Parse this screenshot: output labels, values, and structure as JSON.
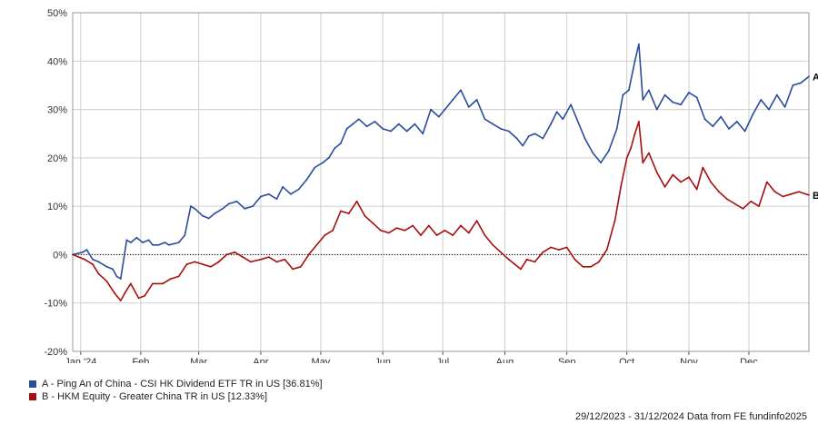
{
  "chart_data": {
    "type": "line",
    "xlabel": "",
    "ylabel": "",
    "ylim": [
      -20,
      50
    ],
    "yticks": [
      -20,
      -10,
      0,
      10,
      20,
      30,
      40,
      50
    ],
    "ytick_labels": [
      "-20%",
      "-10%",
      "0%",
      "10%",
      "20%",
      "30%",
      "40%",
      "50%"
    ],
    "x_start": "2023-12-29",
    "x_end": "2024-12-31",
    "xticks": [
      {
        "date": "2024-01-02",
        "label": "Jan '24"
      },
      {
        "date": "2024-02-01",
        "label": "Feb"
      },
      {
        "date": "2024-03-01",
        "label": "Mar"
      },
      {
        "date": "2024-04-01",
        "label": "Apr"
      },
      {
        "date": "2024-05-01",
        "label": "May"
      },
      {
        "date": "2024-06-01",
        "label": "Jun"
      },
      {
        "date": "2024-07-01",
        "label": "Jul"
      },
      {
        "date": "2024-08-01",
        "label": "Aug"
      },
      {
        "date": "2024-09-01",
        "label": "Sep"
      },
      {
        "date": "2024-10-01",
        "label": "Oct"
      },
      {
        "date": "2024-11-01",
        "label": "Nov"
      },
      {
        "date": "2024-12-01",
        "label": "Dec"
      }
    ],
    "grid": true,
    "zero_line": true,
    "series": [
      {
        "name": "A - Ping An of China - CSI HK Dividend ETF TR in US [36.81%]",
        "end_label": "A",
        "color": "#2a4d9b",
        "points": [
          [
            "2023-12-29",
            0.0
          ],
          [
            "2024-01-03",
            0.5
          ],
          [
            "2024-01-05",
            1.0
          ],
          [
            "2024-01-08",
            -1.0
          ],
          [
            "2024-01-11",
            -1.5
          ],
          [
            "2024-01-15",
            -2.5
          ],
          [
            "2024-01-18",
            -3.0
          ],
          [
            "2024-01-20",
            -4.5
          ],
          [
            "2024-01-22",
            -5.0
          ],
          [
            "2024-01-25",
            3.0
          ],
          [
            "2024-01-27",
            2.5
          ],
          [
            "2024-01-30",
            3.5
          ],
          [
            "2024-02-02",
            2.5
          ],
          [
            "2024-02-05",
            3.0
          ],
          [
            "2024-02-07",
            2.0
          ],
          [
            "2024-02-10",
            2.0
          ],
          [
            "2024-02-13",
            2.5
          ],
          [
            "2024-02-15",
            2.0
          ],
          [
            "2024-02-20",
            2.5
          ],
          [
            "2024-02-23",
            4.0
          ],
          [
            "2024-02-26",
            10.0
          ],
          [
            "2024-02-28",
            9.5
          ],
          [
            "2024-03-03",
            8.0
          ],
          [
            "2024-03-06",
            7.5
          ],
          [
            "2024-03-09",
            8.5
          ],
          [
            "2024-03-13",
            9.5
          ],
          [
            "2024-03-16",
            10.5
          ],
          [
            "2024-03-20",
            11.0
          ],
          [
            "2024-03-24",
            9.5
          ],
          [
            "2024-03-28",
            10.0
          ],
          [
            "2024-04-01",
            12.0
          ],
          [
            "2024-04-05",
            12.5
          ],
          [
            "2024-04-09",
            11.5
          ],
          [
            "2024-04-12",
            14.0
          ],
          [
            "2024-04-16",
            12.5
          ],
          [
            "2024-04-20",
            13.5
          ],
          [
            "2024-04-24",
            15.5
          ],
          [
            "2024-04-28",
            18.0
          ],
          [
            "2024-05-02",
            19.0
          ],
          [
            "2024-05-05",
            20.0
          ],
          [
            "2024-05-08",
            22.0
          ],
          [
            "2024-05-11",
            23.0
          ],
          [
            "2024-05-14",
            26.0
          ],
          [
            "2024-05-17",
            27.0
          ],
          [
            "2024-05-20",
            28.0
          ],
          [
            "2024-05-24",
            26.5
          ],
          [
            "2024-05-28",
            27.5
          ],
          [
            "2024-06-01",
            26.0
          ],
          [
            "2024-06-05",
            25.5
          ],
          [
            "2024-06-09",
            27.0
          ],
          [
            "2024-06-13",
            25.5
          ],
          [
            "2024-06-17",
            27.0
          ],
          [
            "2024-06-21",
            25.0
          ],
          [
            "2024-06-25",
            30.0
          ],
          [
            "2024-06-29",
            28.5
          ],
          [
            "2024-07-02",
            30.0
          ],
          [
            "2024-07-06",
            32.0
          ],
          [
            "2024-07-10",
            34.0
          ],
          [
            "2024-07-14",
            30.5
          ],
          [
            "2024-07-18",
            32.0
          ],
          [
            "2024-07-22",
            28.0
          ],
          [
            "2024-07-26",
            27.0
          ],
          [
            "2024-07-30",
            26.0
          ],
          [
            "2024-08-03",
            25.5
          ],
          [
            "2024-08-07",
            24.0
          ],
          [
            "2024-08-10",
            22.5
          ],
          [
            "2024-08-13",
            24.5
          ],
          [
            "2024-08-16",
            25.0
          ],
          [
            "2024-08-20",
            24.0
          ],
          [
            "2024-08-24",
            27.0
          ],
          [
            "2024-08-27",
            29.5
          ],
          [
            "2024-08-30",
            28.0
          ],
          [
            "2024-09-03",
            31.0
          ],
          [
            "2024-09-06",
            28.0
          ],
          [
            "2024-09-10",
            24.0
          ],
          [
            "2024-09-14",
            21.0
          ],
          [
            "2024-09-18",
            19.0
          ],
          [
            "2024-09-22",
            21.5
          ],
          [
            "2024-09-26",
            26.0
          ],
          [
            "2024-09-29",
            33.0
          ],
          [
            "2024-10-02",
            34.0
          ],
          [
            "2024-10-05",
            40.0
          ],
          [
            "2024-10-07",
            43.5
          ],
          [
            "2024-10-09",
            32.0
          ],
          [
            "2024-10-12",
            34.0
          ],
          [
            "2024-10-16",
            30.0
          ],
          [
            "2024-10-20",
            33.0
          ],
          [
            "2024-10-24",
            31.5
          ],
          [
            "2024-10-28",
            31.0
          ],
          [
            "2024-11-01",
            33.5
          ],
          [
            "2024-11-05",
            32.5
          ],
          [
            "2024-11-09",
            28.0
          ],
          [
            "2024-11-13",
            26.5
          ],
          [
            "2024-11-17",
            28.5
          ],
          [
            "2024-11-21",
            26.0
          ],
          [
            "2024-11-25",
            27.5
          ],
          [
            "2024-11-29",
            25.5
          ],
          [
            "2024-12-03",
            29.0
          ],
          [
            "2024-12-07",
            32.0
          ],
          [
            "2024-12-11",
            30.0
          ],
          [
            "2024-12-15",
            33.0
          ],
          [
            "2024-12-19",
            30.5
          ],
          [
            "2024-12-23",
            35.0
          ],
          [
            "2024-12-27",
            35.5
          ],
          [
            "2024-12-31",
            36.8
          ]
        ]
      },
      {
        "name": "B - HKM Equity - Greater China TR in US [12.33%]",
        "end_label": "B",
        "color": "#a50f0f",
        "points": [
          [
            "2023-12-29",
            0.0
          ],
          [
            "2024-01-04",
            -1.0
          ],
          [
            "2024-01-08",
            -2.0
          ],
          [
            "2024-01-11",
            -4.0
          ],
          [
            "2024-01-15",
            -5.5
          ],
          [
            "2024-01-19",
            -8.0
          ],
          [
            "2024-01-22",
            -9.5
          ],
          [
            "2024-01-24",
            -8.0
          ],
          [
            "2024-01-27",
            -6.0
          ],
          [
            "2024-01-31",
            -9.0
          ],
          [
            "2024-02-03",
            -8.5
          ],
          [
            "2024-02-07",
            -6.0
          ],
          [
            "2024-02-12",
            -6.0
          ],
          [
            "2024-02-16",
            -5.0
          ],
          [
            "2024-02-20",
            -4.5
          ],
          [
            "2024-02-24",
            -2.0
          ],
          [
            "2024-02-28",
            -1.5
          ],
          [
            "2024-03-03",
            -2.0
          ],
          [
            "2024-03-07",
            -2.5
          ],
          [
            "2024-03-11",
            -1.5
          ],
          [
            "2024-03-15",
            0.0
          ],
          [
            "2024-03-19",
            0.5
          ],
          [
            "2024-03-23",
            -0.5
          ],
          [
            "2024-03-27",
            -1.5
          ],
          [
            "2024-04-01",
            -1.0
          ],
          [
            "2024-04-05",
            -0.5
          ],
          [
            "2024-04-09",
            -1.5
          ],
          [
            "2024-04-13",
            -1.0
          ],
          [
            "2024-04-17",
            -3.0
          ],
          [
            "2024-04-21",
            -2.5
          ],
          [
            "2024-04-25",
            0.0
          ],
          [
            "2024-04-29",
            2.0
          ],
          [
            "2024-05-03",
            4.0
          ],
          [
            "2024-05-07",
            5.0
          ],
          [
            "2024-05-11",
            9.0
          ],
          [
            "2024-05-15",
            8.5
          ],
          [
            "2024-05-19",
            11.0
          ],
          [
            "2024-05-23",
            8.0
          ],
          [
            "2024-05-27",
            6.5
          ],
          [
            "2024-05-31",
            5.0
          ],
          [
            "2024-06-04",
            4.5
          ],
          [
            "2024-06-08",
            5.5
          ],
          [
            "2024-06-12",
            5.0
          ],
          [
            "2024-06-16",
            6.0
          ],
          [
            "2024-06-20",
            4.0
          ],
          [
            "2024-06-24",
            6.0
          ],
          [
            "2024-06-28",
            4.0
          ],
          [
            "2024-07-02",
            5.0
          ],
          [
            "2024-07-06",
            4.0
          ],
          [
            "2024-07-10",
            6.0
          ],
          [
            "2024-07-14",
            4.5
          ],
          [
            "2024-07-18",
            7.0
          ],
          [
            "2024-07-22",
            4.0
          ],
          [
            "2024-07-26",
            2.0
          ],
          [
            "2024-07-30",
            0.5
          ],
          [
            "2024-08-03",
            -1.0
          ],
          [
            "2024-08-06",
            -2.0
          ],
          [
            "2024-08-09",
            -3.0
          ],
          [
            "2024-08-12",
            -1.0
          ],
          [
            "2024-08-16",
            -1.5
          ],
          [
            "2024-08-20",
            0.5
          ],
          [
            "2024-08-24",
            1.5
          ],
          [
            "2024-08-28",
            1.0
          ],
          [
            "2024-09-01",
            1.5
          ],
          [
            "2024-09-05",
            -1.0
          ],
          [
            "2024-09-09",
            -2.5
          ],
          [
            "2024-09-13",
            -2.5
          ],
          [
            "2024-09-17",
            -1.5
          ],
          [
            "2024-09-21",
            1.0
          ],
          [
            "2024-09-25",
            7.0
          ],
          [
            "2024-09-28",
            14.0
          ],
          [
            "2024-10-01",
            20.0
          ],
          [
            "2024-10-03",
            22.0
          ],
          [
            "2024-10-05",
            25.0
          ],
          [
            "2024-10-07",
            27.5
          ],
          [
            "2024-10-09",
            19.0
          ],
          [
            "2024-10-12",
            21.0
          ],
          [
            "2024-10-16",
            17.0
          ],
          [
            "2024-10-20",
            14.0
          ],
          [
            "2024-10-24",
            16.5
          ],
          [
            "2024-10-28",
            15.0
          ],
          [
            "2024-11-01",
            16.0
          ],
          [
            "2024-11-05",
            13.5
          ],
          [
            "2024-11-08",
            18.0
          ],
          [
            "2024-11-12",
            15.0
          ],
          [
            "2024-11-16",
            13.0
          ],
          [
            "2024-11-20",
            11.5
          ],
          [
            "2024-11-24",
            10.5
          ],
          [
            "2024-11-28",
            9.5
          ],
          [
            "2024-12-02",
            11.0
          ],
          [
            "2024-12-06",
            10.0
          ],
          [
            "2024-12-10",
            15.0
          ],
          [
            "2024-12-14",
            13.0
          ],
          [
            "2024-12-18",
            12.0
          ],
          [
            "2024-12-22",
            12.5
          ],
          [
            "2024-12-26",
            13.0
          ],
          [
            "2024-12-31",
            12.3
          ]
        ]
      }
    ]
  },
  "footer": {
    "date_range": "29/12/2023 - 31/12/2024",
    "source": "Data from FE fundinfo2025"
  }
}
